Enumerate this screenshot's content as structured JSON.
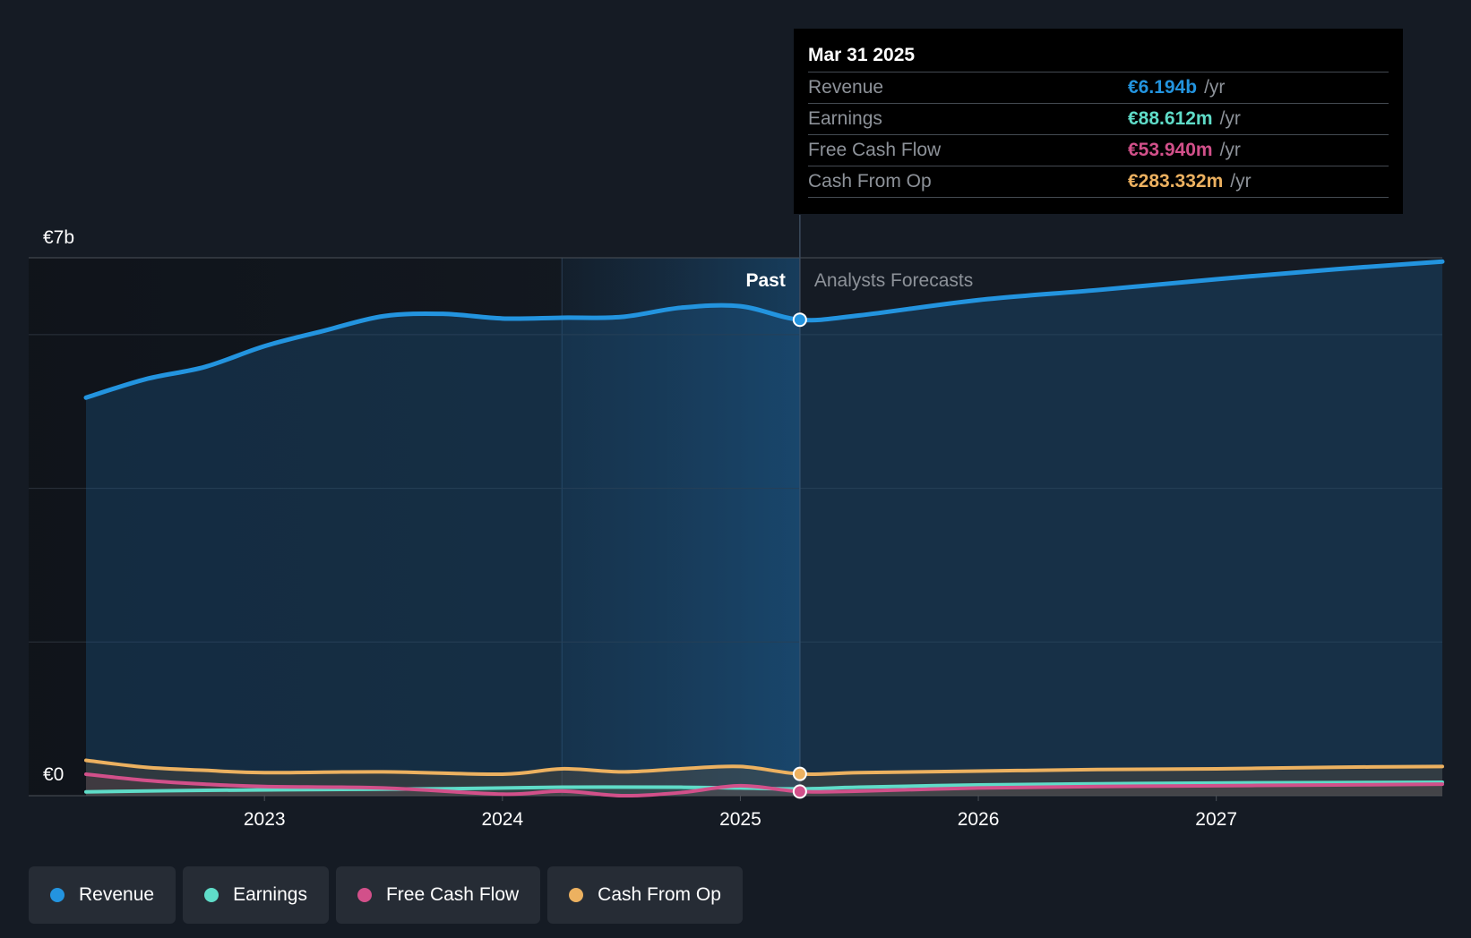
{
  "chart_data": {
    "type": "area",
    "y_axis": {
      "top_label": "€7b",
      "bottom_label": "€0",
      "ylim": [
        0,
        7000
      ]
    },
    "x_ticks": [
      "2023",
      "2024",
      "2025",
      "2026",
      "2027"
    ],
    "past_label": "Past",
    "forecast_label": "Analysts Forecasts",
    "past_end": 2025.25,
    "series": [
      {
        "key": "revenue",
        "name": "Revenue",
        "color": "#2394df",
        "x": [
          2022.25,
          2022.5,
          2022.75,
          2023.0,
          2023.25,
          2023.5,
          2023.75,
          2024.0,
          2024.25,
          2024.5,
          2024.75,
          2025.0,
          2025.25,
          2025.5,
          2026.0,
          2026.5,
          2027.0,
          2027.5,
          2027.95
        ],
        "y": [
          5180,
          5420,
          5580,
          5850,
          6050,
          6240,
          6270,
          6210,
          6220,
          6230,
          6350,
          6370,
          6194,
          6250,
          6450,
          6580,
          6720,
          6850,
          6950
        ]
      },
      {
        "key": "earnings",
        "name": "Earnings",
        "color": "#5fdcc8",
        "x": [
          2022.25,
          2022.75,
          2023.25,
          2023.75,
          2024.25,
          2024.75,
          2025.0,
          2025.25,
          2025.5,
          2026.0,
          2026.5,
          2027.0,
          2027.5,
          2027.95
        ],
        "y": [
          50,
          70,
          80,
          90,
          110,
          110,
          100,
          88.612,
          110,
          140,
          155,
          165,
          170,
          175
        ]
      },
      {
        "key": "fcf",
        "name": "Free Cash Flow",
        "color": "#d2508a",
        "x": [
          2022.25,
          2022.5,
          2022.75,
          2023.0,
          2023.5,
          2024.0,
          2024.25,
          2024.5,
          2024.75,
          2025.0,
          2025.25,
          2025.5,
          2026.0,
          2026.5,
          2027.0,
          2027.5,
          2027.95
        ],
        "y": [
          280,
          200,
          150,
          120,
          100,
          20,
          60,
          0,
          40,
          130,
          53.94,
          60,
          100,
          120,
          130,
          140,
          150
        ]
      },
      {
        "key": "cfo",
        "name": "Cash From Op",
        "color": "#ecb160",
        "x": [
          2022.25,
          2022.5,
          2022.75,
          2023.0,
          2023.5,
          2024.0,
          2024.25,
          2024.5,
          2024.75,
          2025.0,
          2025.25,
          2025.5,
          2026.0,
          2026.5,
          2027.0,
          2027.5,
          2027.95
        ],
        "y": [
          460,
          370,
          330,
          300,
          310,
          280,
          350,
          310,
          350,
          380,
          283.332,
          300,
          320,
          340,
          350,
          370,
          380
        ]
      }
    ],
    "tooltip": {
      "date": "Mar 31 2025",
      "rows": [
        {
          "label": "Revenue",
          "value": "€6.194b",
          "unit": "/yr",
          "color": "#2394df"
        },
        {
          "label": "Earnings",
          "value": "€88.612m",
          "unit": "/yr",
          "color": "#5fdcc8"
        },
        {
          "label": "Free Cash Flow",
          "value": "€53.940m",
          "unit": "/yr",
          "color": "#d2508a"
        },
        {
          "label": "Cash From Op",
          "value": "€283.332m",
          "unit": "/yr",
          "color": "#ecb160"
        }
      ]
    },
    "legend": [
      {
        "name": "Revenue",
        "color": "#2394df"
      },
      {
        "name": "Earnings",
        "color": "#5fdcc8"
      },
      {
        "name": "Free Cash Flow",
        "color": "#d2508a"
      },
      {
        "name": "Cash From Op",
        "color": "#ecb160"
      }
    ]
  }
}
